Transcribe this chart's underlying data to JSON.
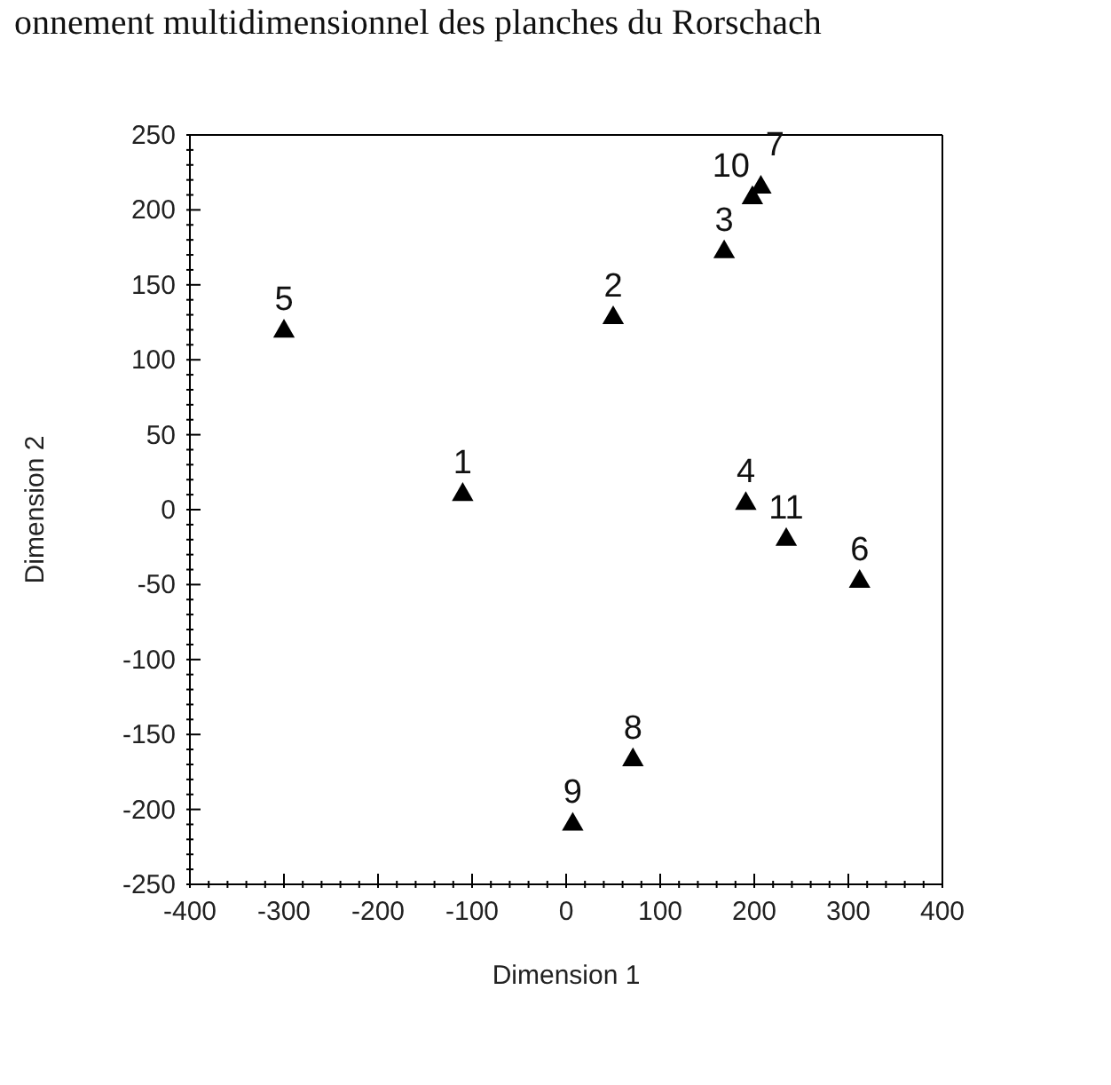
{
  "chart_data": {
    "type": "scatter",
    "title": "onnement multidimensionnel des planches du Rorschach",
    "xlabel": "Dimension 1",
    "ylabel": "Dimension 2",
    "series": [
      {
        "color": "#000000",
        "x": [
          -110,
          50,
          168,
          191,
          234,
          312,
          -300,
          71,
          7,
          198,
          207
        ],
        "values": [
          10,
          128,
          172,
          4,
          -20,
          -48,
          119,
          -167,
          -210,
          208,
          215
        ]
      }
    ],
    "annotations": [
      {
        "text": "1",
        "x": -110,
        "y": 10
      },
      {
        "text": "2",
        "x": 50,
        "y": 128
      },
      {
        "text": "3",
        "x": 168,
        "y": 172
      },
      {
        "text": "4",
        "x": 191,
        "y": 4
      },
      {
        "text": "11",
        "x": 234,
        "y": -20
      },
      {
        "text": "6",
        "x": 312,
        "y": -48
      },
      {
        "text": "5",
        "x": -300,
        "y": 119
      },
      {
        "text": "8",
        "x": 71,
        "y": -167
      },
      {
        "text": "9",
        "x": 7,
        "y": -210
      },
      {
        "text": "10",
        "x": 198,
        "y": 208
      },
      {
        "text": "7",
        "x": 207,
        "y": 215
      }
    ],
    "xlim": [
      -400,
      400
    ],
    "ylim": [
      -250,
      250
    ],
    "xticks": [
      -400,
      {
        "value": -380,
        "label": null
      },
      {
        "value": -360,
        "label": null
      },
      {
        "value": -340,
        "label": null
      },
      {
        "value": -320,
        "label": null
      },
      -300,
      {
        "value": -280,
        "label": null
      },
      {
        "value": -260,
        "label": null
      },
      {
        "value": -240,
        "label": null
      },
      {
        "value": -220,
        "label": null
      },
      -200,
      {
        "value": -180,
        "label": null
      },
      {
        "value": -160,
        "label": null
      },
      {
        "value": -140,
        "label": null
      },
      {
        "value": -120,
        "label": null
      },
      -100,
      {
        "value": -80,
        "label": null
      },
      {
        "value": -60,
        "label": null
      },
      {
        "value": -40,
        "label": null
      },
      {
        "value": -20,
        "label": null
      },
      0,
      {
        "value": 20,
        "label": null
      },
      {
        "value": 40,
        "label": null
      },
      {
        "value": 60,
        "label": null
      },
      {
        "value": 80,
        "label": null
      },
      100,
      {
        "value": 120,
        "label": null
      },
      {
        "value": 140,
        "label": null
      },
      {
        "value": 160,
        "label": null
      },
      {
        "value": 180,
        "label": null
      },
      200,
      {
        "value": 220,
        "label": null
      },
      {
        "value": 240,
        "label": null
      },
      {
        "value": 260,
        "label": null
      },
      {
        "value": 280,
        "label": null
      },
      300,
      {
        "value": 320,
        "label": null
      },
      {
        "value": 340,
        "label": null
      },
      {
        "value": 360,
        "label": null
      },
      {
        "value": 380,
        "label": null
      },
      400
    ],
    "yticks": [
      -250,
      {
        "value": -240,
        "label": null
      },
      {
        "value": -230,
        "label": null
      },
      {
        "value": -220,
        "label": null
      },
      {
        "value": -210,
        "label": null
      },
      -200,
      {
        "value": -190,
        "label": null
      },
      {
        "value": -180,
        "label": null
      },
      {
        "value": -170,
        "label": null
      },
      {
        "value": -160,
        "label": null
      },
      -150,
      {
        "value": -140,
        "label": null
      },
      {
        "value": -130,
        "label": null
      },
      {
        "value": -120,
        "label": null
      },
      {
        "value": -110,
        "label": null
      },
      -100,
      {
        "value": -90,
        "label": null
      },
      {
        "value": -80,
        "label": null
      },
      {
        "value": -70,
        "label": null
      },
      {
        "value": -60,
        "label": null
      },
      -50,
      {
        "value": -40,
        "label": null
      },
      {
        "value": -30,
        "label": null
      },
      {
        "value": -20,
        "label": null
      },
      {
        "value": -10,
        "label": null
      },
      0,
      {
        "value": 10,
        "label": null
      },
      {
        "value": 20,
        "label": null
      },
      {
        "value": 30,
        "label": null
      },
      {
        "value": 40,
        "label": null
      },
      50,
      {
        "value": 60,
        "label": null
      },
      {
        "value": 70,
        "label": null
      },
      {
        "value": 80,
        "label": null
      },
      {
        "value": 90,
        "label": null
      },
      100,
      {
        "value": 110,
        "label": null
      },
      {
        "value": 120,
        "label": null
      },
      {
        "value": 130,
        "label": null
      },
      {
        "value": 140,
        "label": null
      },
      150,
      {
        "value": 160,
        "label": null
      },
      {
        "value": 170,
        "label": null
      },
      {
        "value": 180,
        "label": null
      },
      {
        "value": 190,
        "label": null
      },
      200,
      {
        "value": 210,
        "label": null
      },
      {
        "value": 220,
        "label": null
      },
      {
        "value": 230,
        "label": null
      },
      {
        "value": 240,
        "label": null
      },
      250
    ],
    "marker": "triangle"
  }
}
